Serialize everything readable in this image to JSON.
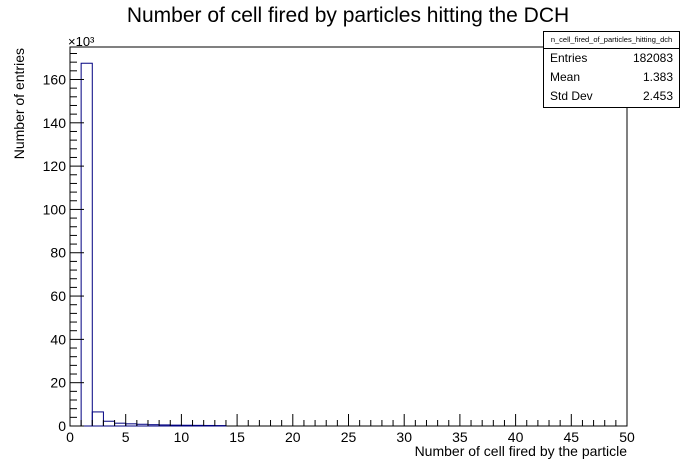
{
  "chart_data": {
    "type": "bar",
    "title": "Number of cell fired by particles hitting the DCH",
    "xlabel": "Number of cell fired by the particle",
    "ylabel": "Number of entries",
    "y_multiplier": "×10³",
    "xlim": [
      0,
      50
    ],
    "ylim": [
      0,
      175
    ],
    "x_ticks": [
      0,
      5,
      10,
      15,
      20,
      25,
      30,
      35,
      40,
      45,
      50
    ],
    "y_ticks": [
      0,
      20,
      40,
      60,
      80,
      100,
      120,
      140,
      160
    ],
    "bin_width": 1,
    "bins_start": 1,
    "values": [
      167.5,
      6.5,
      2.2,
      1.3,
      1.0,
      0.8,
      0.6,
      0.5,
      0.4,
      0.35,
      0.3,
      0.25,
      0.2
    ],
    "grid": false,
    "legend": "top-right"
  },
  "stats_box": {
    "name": "n_cell_fired_of_particles_hitting_dch",
    "rows": [
      {
        "label": "Entries",
        "value": "182083"
      },
      {
        "label": "Mean",
        "value": "1.383"
      },
      {
        "label": "Std Dev",
        "value": "2.453"
      }
    ]
  },
  "colors": {
    "histogram_line": "#000080",
    "axis": "#000000"
  }
}
